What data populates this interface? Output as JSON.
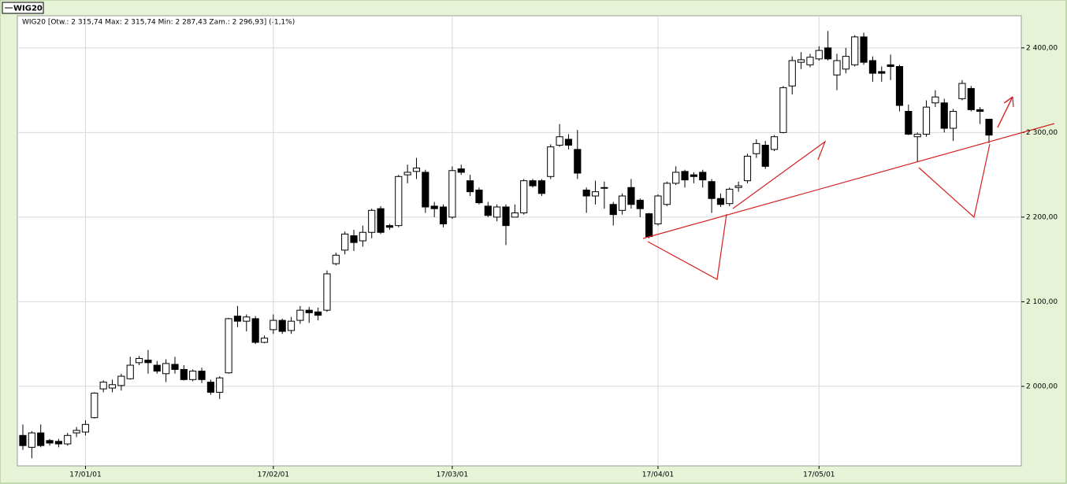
{
  "chart_data": {
    "type": "candlestick",
    "legend": "WIG20",
    "header": "WIG20 [Otw.: 2 315,74  Max: 2 315,74  Min: 2 287,43  Zam.: 2 296,93] (-1,1%)",
    "categories": [
      null,
      null,
      null,
      null,
      null,
      null,
      null,
      "17/01/01",
      null,
      null,
      null,
      null,
      null,
      null,
      null,
      null,
      null,
      null,
      null,
      null,
      null,
      null,
      null,
      null,
      null,
      null,
      null,
      null,
      "17/02/01",
      null,
      null,
      null,
      null,
      null,
      null,
      null,
      null,
      null,
      null,
      null,
      null,
      null,
      null,
      null,
      null,
      null,
      null,
      null,
      "17/03/01",
      null,
      null,
      null,
      null,
      null,
      null,
      null,
      null,
      null,
      null,
      null,
      null,
      null,
      null,
      null,
      null,
      null,
      null,
      null,
      null,
      null,
      null,
      "17/04/01",
      null,
      null,
      null,
      null,
      null,
      null,
      null,
      null,
      null,
      null,
      null,
      null,
      null,
      null,
      null,
      null,
      null,
      "17/05/01",
      null,
      null,
      null,
      null,
      null,
      null,
      null,
      null,
      null,
      null,
      null,
      null,
      null,
      null,
      null,
      null,
      null,
      null,
      null
    ],
    "open": [
      1942,
      1928,
      1945,
      1936,
      1935,
      1932,
      1945,
      1946,
      1963,
      1997,
      1998,
      2001,
      2009,
      2028,
      2031,
      2025,
      2015,
      2026,
      2020,
      2008,
      2018,
      2005,
      1993,
      2016,
      2083,
      2077,
      2080,
      2052,
      2067,
      2078,
      2066,
      2078,
      2090,
      2088,
      2090,
      2145,
      2161,
      2178,
      2172,
      2182,
      2210,
      2190,
      2190,
      2250,
      2254,
      2253,
      2213,
      2212,
      2200,
      2257,
      2243,
      2232,
      2213,
      2200,
      2212,
      2200,
      2205,
      2243,
      2243,
      2248,
      2285,
      2292,
      2280,
      2232,
      2225,
      2235,
      2215,
      2208,
      2235,
      2220,
      2204,
      2192,
      2215,
      2240,
      2254,
      2250,
      2253,
      2242,
      2222,
      2216,
      2235,
      2243,
      2275,
      2285,
      2280,
      2300,
      2355,
      2383,
      2380,
      2387,
      2400,
      2368,
      2375,
      2380,
      2413,
      2385,
      2372,
      2380,
      2378,
      2325,
      2295,
      2298,
      2335,
      2335,
      2305,
      2340,
      2352,
      2327,
      2315.74
    ],
    "high": [
      1955,
      1947,
      1955,
      1938,
      1938,
      1945,
      1952,
      1960,
      1993,
      2007,
      2008,
      2015,
      2035,
      2036,
      2043,
      2030,
      2032,
      2035,
      2025,
      2020,
      2022,
      2008,
      2012,
      2081,
      2095,
      2085,
      2083,
      2060,
      2085,
      2080,
      2082,
      2095,
      2094,
      2093,
      2137,
      2158,
      2183,
      2185,
      2190,
      2210,
      2213,
      2192,
      2250,
      2262,
      2270,
      2256,
      2218,
      2215,
      2260,
      2262,
      2250,
      2235,
      2218,
      2215,
      2215,
      2215,
      2245,
      2245,
      2245,
      2286,
      2310,
      2298,
      2303,
      2235,
      2243,
      2242,
      2218,
      2228,
      2245,
      2222,
      2205,
      2227,
      2242,
      2260,
      2256,
      2253,
      2256,
      2245,
      2228,
      2235,
      2242,
      2275,
      2292,
      2290,
      2297,
      2355,
      2390,
      2395,
      2393,
      2402,
      2420,
      2393,
      2400,
      2415,
      2418,
      2390,
      2378,
      2392,
      2380,
      2333,
      2300,
      2338,
      2350,
      2340,
      2328,
      2362,
      2355,
      2330,
      2315.74
    ],
    "low": [
      1925,
      1915,
      1928,
      1930,
      1928,
      1930,
      1940,
      1942,
      1962,
      1993,
      1993,
      1995,
      2008,
      2025,
      2015,
      2015,
      2005,
      2015,
      2007,
      2006,
      2004,
      1990,
      1985,
      2015,
      2070,
      2065,
      2050,
      2051,
      2062,
      2062,
      2062,
      2074,
      2075,
      2078,
      2088,
      2143,
      2156,
      2160,
      2165,
      2175,
      2180,
      2185,
      2188,
      2240,
      2245,
      2205,
      2200,
      2188,
      2198,
      2250,
      2225,
      2215,
      2200,
      2195,
      2167,
      2200,
      2203,
      2235,
      2225,
      2245,
      2283,
      2280,
      2245,
      2205,
      2215,
      2210,
      2190,
      2203,
      2210,
      2200,
      2175,
      2190,
      2213,
      2238,
      2235,
      2240,
      2235,
      2205,
      2212,
      2213,
      2230,
      2240,
      2270,
      2257,
      2278,
      2299,
      2345,
      2375,
      2377,
      2385,
      2385,
      2350,
      2370,
      2378,
      2380,
      2360,
      2360,
      2362,
      2325,
      2297,
      2265,
      2295,
      2330,
      2300,
      2290,
      2338,
      2325,
      2310,
      2287.43
    ],
    "close": [
      1930,
      1945,
      1930,
      1933,
      1932,
      1942,
      1948,
      1955,
      1992,
      2005,
      2002,
      2012,
      2025,
      2033,
      2028,
      2018,
      2027,
      2020,
      2008,
      2018,
      2008,
      1993,
      2010,
      2080,
      2077,
      2082,
      2052,
      2057,
      2078,
      2065,
      2077,
      2090,
      2087,
      2084,
      2133,
      2155,
      2180,
      2170,
      2182,
      2208,
      2182,
      2188,
      2248,
      2253,
      2258,
      2212,
      2210,
      2192,
      2255,
      2253,
      2230,
      2217,
      2202,
      2212,
      2190,
      2205,
      2243,
      2237,
      2228,
      2283,
      2295,
      2285,
      2252,
      2225,
      2230,
      2235,
      2203,
      2225,
      2215,
      2210,
      2177,
      2225,
      2240,
      2253,
      2244,
      2248,
      2244,
      2222,
      2215,
      2233,
      2237,
      2272,
      2287,
      2260,
      2295,
      2353,
      2385,
      2386,
      2389,
      2397,
      2387,
      2385,
      2390,
      2413,
      2383,
      2370,
      2370,
      2378,
      2332,
      2298,
      2298,
      2330,
      2342,
      2305,
      2325,
      2358,
      2327,
      2325,
      2296.93
    ],
    "up_color": "#ffffff",
    "down_color": "#000000",
    "ylim": [
      1906,
      2438
    ],
    "yticks": [
      {
        "value": 2000,
        "label": "2 000,00"
      },
      {
        "value": 2100,
        "label": "2 100,00"
      },
      {
        "value": 2200,
        "label": "2 200,00"
      },
      {
        "value": 2300,
        "label": "2 300,00"
      },
      {
        "value": 2400,
        "label": "2 400,00"
      }
    ],
    "grid": true
  }
}
